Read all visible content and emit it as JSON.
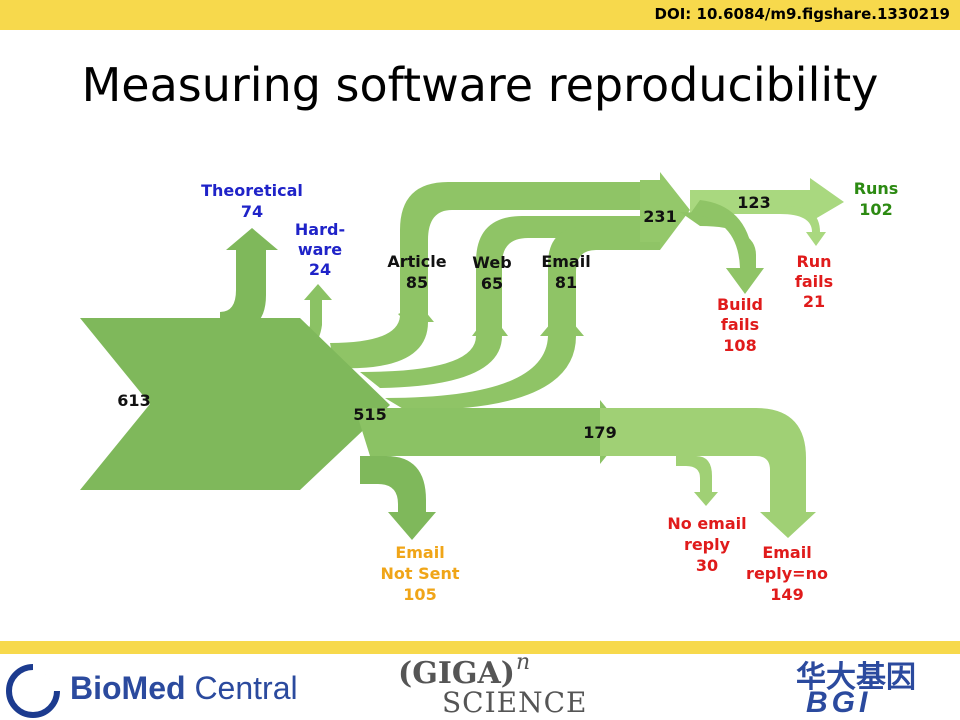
{
  "header": {
    "doi": "DOI: 10.6084/m9.figshare.1330219",
    "title": "Measuring software reproducibility"
  },
  "diagram": {
    "total": "613",
    "after_split": "515",
    "nodes": {
      "theoretical": {
        "label": "Theoretical",
        "value": "74"
      },
      "hardware": {
        "label_1": "Hard-",
        "label_2": "ware",
        "value": "24"
      },
      "article": {
        "label": "Article",
        "value": "85"
      },
      "web": {
        "label": "Web",
        "value": "65"
      },
      "email": {
        "label": "Email",
        "value": "81"
      },
      "build_total": "231",
      "run_total": "123",
      "runs": {
        "label": "Runs",
        "value": "102"
      },
      "run_fails": {
        "label_1": "Run",
        "label_2": "fails",
        "value": "21"
      },
      "build_fails": {
        "label_1": "Build",
        "label_2": "fails",
        "value": "108"
      },
      "emailed": "179",
      "not_sent": {
        "label_1": "Email",
        "label_2": "Not Sent",
        "value": "105"
      },
      "no_reply": {
        "label_1": "No email",
        "label_2": "reply",
        "value": "30"
      },
      "reply_no": {
        "label_1": "Email",
        "label_2": "reply=no",
        "value": "149"
      }
    },
    "colors": {
      "flow_dark": "#7fb85b",
      "flow_mid": "#8fc466",
      "flow_light": "#a9d87f",
      "label_blue": "#1f23c8",
      "label_red": "#e01b1b",
      "label_green": "#2c8a12",
      "label_orange": "#f0a518",
      "label_black": "#111111"
    }
  },
  "footer": {
    "biomed_bold": "BioMed",
    "biomed_regular": " Central",
    "giga_main": "(GIGA)",
    "giga_sup": "n",
    "giga_science": "SCIENCE",
    "bgi_cn": "华大基因",
    "bgi_en": "BGI"
  }
}
